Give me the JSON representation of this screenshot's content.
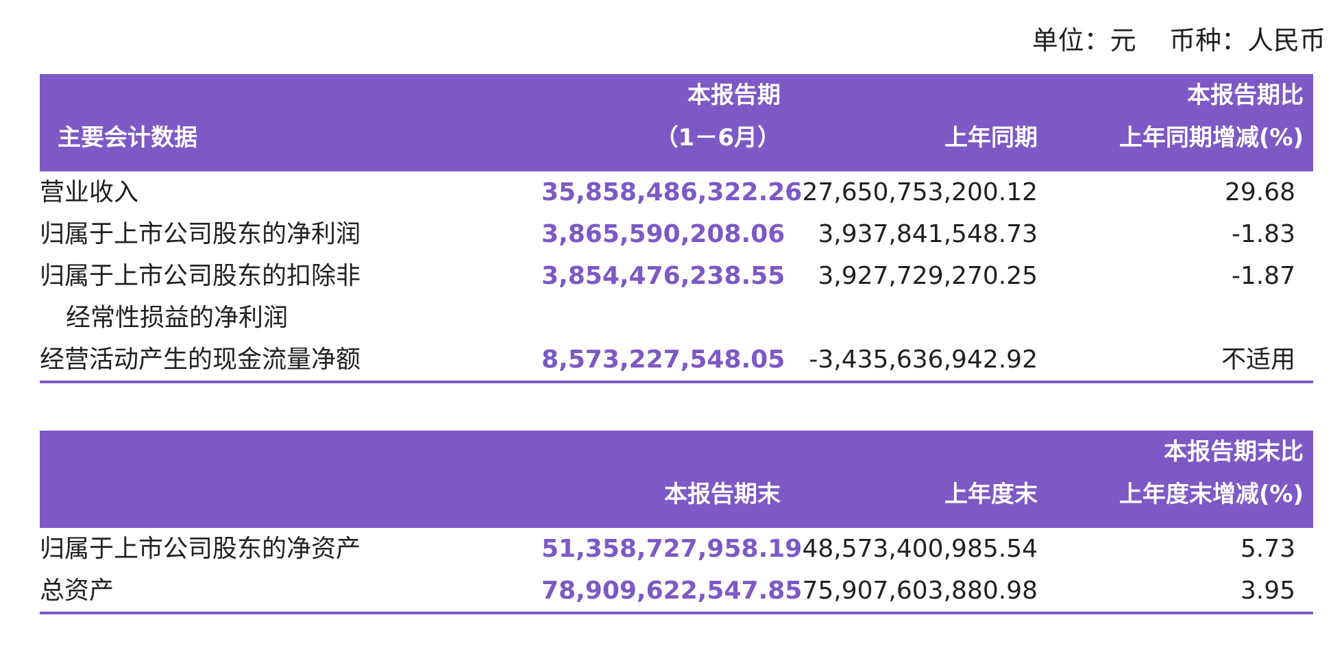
{
  "unit_line": "单位：元    币种：人民币",
  "table1": {
    "headers": {
      "col1": "主要会计数据",
      "col2_line1": "本报告期",
      "col2_line2": "（1－6月）",
      "col3": "上年同期",
      "col4_line1": "本报告期比",
      "col4_line2": "上年同期增减(%)"
    },
    "rows": [
      {
        "label": "营业收入",
        "current": "35,858,486,322.26",
        "previous": "27,650,753,200.12",
        "change": "29.68"
      },
      {
        "label": "归属于上市公司股东的净利润",
        "current": "3,865,590,208.06",
        "previous": "3,937,841,548.73",
        "change": "-1.83"
      },
      {
        "label": "归属于上市公司股东的扣除非",
        "label_line2": "经常性损益的净利润",
        "current": "3,854,476,238.55",
        "previous": "3,927,729,270.25",
        "change": "-1.87"
      },
      {
        "label": "经营活动产生的现金流量净额",
        "current": "8,573,227,548.05",
        "previous": "-3,435,636,942.92",
        "change": "不适用"
      }
    ]
  },
  "table2": {
    "headers": {
      "col1": "",
      "col2": "本报告期末",
      "col3": "上年度末",
      "col4_line1": "本报告期末比",
      "col4_line2": "上年度末增减(%)"
    },
    "rows": [
      {
        "label": "归属于上市公司股东的净资产",
        "current": "51,358,727,958.19",
        "previous": "48,573,400,985.54",
        "change": "5.73"
      },
      {
        "label": "总资产",
        "current": "78,909,622,547.85",
        "previous": "75,907,603,880.98",
        "change": "3.95"
      }
    ]
  },
  "colors": {
    "accent": "#7c59c4",
    "text": "#231f20",
    "header_text": "#ffffff"
  }
}
